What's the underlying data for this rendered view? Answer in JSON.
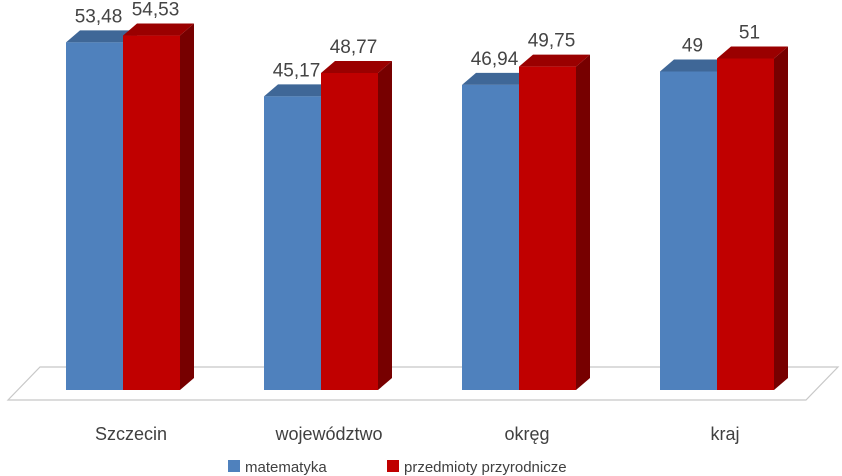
{
  "chart_data": {
    "type": "bar",
    "style": "3d-clustered-column",
    "categories": [
      "Szczecin",
      "województwo",
      "okręg",
      "kraj"
    ],
    "series": [
      {
        "name": "matematyka",
        "color": "#4f81bd",
        "values": [
          53.48,
          45.17,
          46.94,
          49
        ],
        "labels": [
          "53,48",
          "45,17",
          "46,94",
          "49"
        ]
      },
      {
        "name": "przedmioty przyrodnicze",
        "color": "#c00000",
        "values": [
          54.53,
          48.77,
          49.75,
          51
        ],
        "labels": [
          "54,53",
          "48,77",
          "49,75",
          "51"
        ]
      }
    ],
    "title": "",
    "xlabel": "",
    "ylabel": "",
    "ylim": [
      0,
      60
    ],
    "grid": false,
    "legend_position": "bottom"
  }
}
